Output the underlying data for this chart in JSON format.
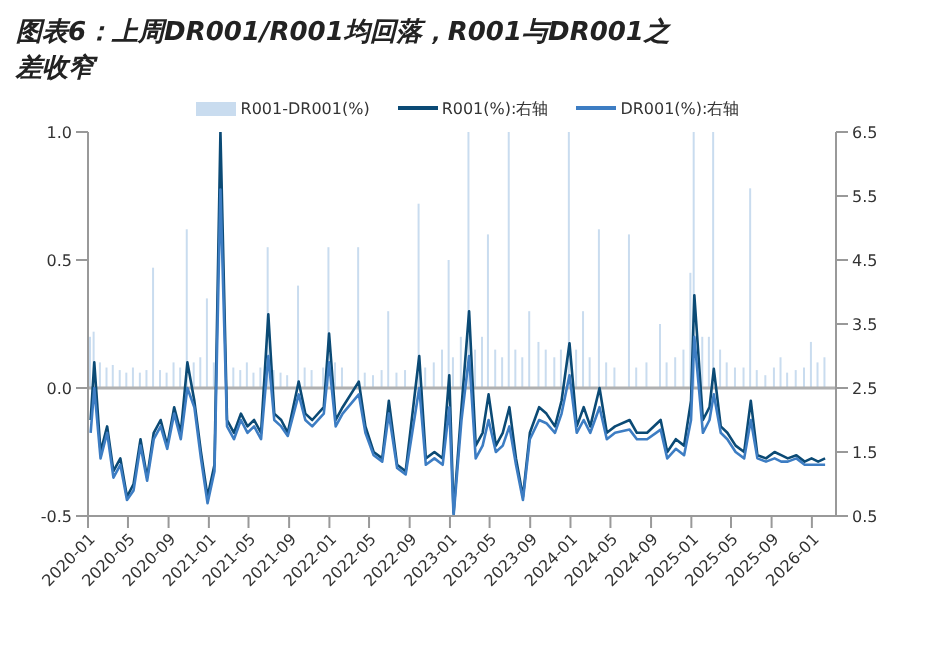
{
  "chart_data": {
    "type": "line",
    "title": "图表6：上周DR001/R001均回落，R001与DR001之差收窄",
    "x": [
      "2020-01-09",
      "2020-01-20",
      "2020-02-08",
      "2020-02-28",
      "2020-03-18",
      "2020-04-08",
      "2020-04-28",
      "2020-05-18",
      "2020-06-08",
      "2020-06-28",
      "2020-07-18",
      "2020-08-08",
      "2020-08-28",
      "2020-09-18",
      "2020-10-08",
      "2020-10-28",
      "2020-11-18",
      "2020-12-08",
      "2020-12-28",
      "2021-01-18",
      "2021-02-05",
      "2021-02-25",
      "2021-03-18",
      "2021-04-08",
      "2021-04-28",
      "2021-05-18",
      "2021-06-08",
      "2021-06-30",
      "2021-07-18",
      "2021-08-08",
      "2021-08-28",
      "2021-09-30",
      "2021-10-20",
      "2021-11-10",
      "2021-12-15",
      "2021-12-31",
      "2022-01-20",
      "2022-02-10",
      "2022-03-31",
      "2022-04-20",
      "2022-05-15",
      "2022-06-10",
      "2022-06-30",
      "2022-07-25",
      "2022-08-20",
      "2022-09-30",
      "2022-10-20",
      "2022-11-15",
      "2022-12-10",
      "2022-12-30",
      "2023-01-12",
      "2023-02-05",
      "2023-02-28",
      "2023-03-20",
      "2023-04-10",
      "2023-04-28",
      "2023-05-20",
      "2023-06-10",
      "2023-06-30",
      "2023-07-20",
      "2023-08-10",
      "2023-08-31",
      "2023-09-28",
      "2023-10-20",
      "2023-11-15",
      "2023-12-05",
      "2023-12-29",
      "2024-01-20",
      "2024-02-10",
      "2024-03-01",
      "2024-03-29",
      "2024-04-20",
      "2024-05-15",
      "2024-06-28",
      "2024-07-20",
      "2024-08-20",
      "2024-09-30",
      "2024-10-20",
      "2024-11-15",
      "2024-12-10",
      "2024-12-31",
      "2025-01-10",
      "2025-02-05",
      "2025-02-25",
      "2025-03-10",
      "2025-03-31",
      "2025-04-20",
      "2025-05-15",
      "2025-06-10",
      "2025-06-30",
      "2025-07-20",
      "2025-08-15",
      "2025-09-10",
      "2025-09-30",
      "2025-10-20",
      "2025-11-15",
      "2025-12-10",
      "2025-12-31",
      "2026-01-20",
      "2026-02-10"
    ],
    "series": [
      {
        "name": "R001-DR001(%)",
        "type": "bar",
        "color": "#c9dcef",
        "values": [
          0.2,
          0.22,
          0.1,
          0.08,
          0.09,
          0.07,
          0.06,
          0.08,
          0.06,
          0.07,
          0.47,
          0.07,
          0.06,
          0.1,
          0.08,
          0.62,
          0.1,
          0.12,
          0.35,
          0.1,
          null,
          null,
          0.08,
          0.07,
          0.1,
          0.06,
          0.08,
          0.55,
          0.07,
          0.06,
          0.05,
          0.4,
          0.08,
          0.07,
          0.08,
          0.55,
          0.1,
          0.08,
          0.55,
          0.06,
          0.05,
          0.07,
          0.3,
          0.06,
          0.07,
          0.72,
          0.08,
          0.1,
          0.15,
          0.5,
          0.12,
          0.2,
          1.0,
          0.15,
          0.2,
          0.6,
          0.15,
          0.12,
          1.0,
          0.15,
          0.12,
          0.3,
          0.18,
          0.15,
          0.12,
          0.15,
          1.0,
          0.15,
          0.3,
          0.12,
          0.62,
          0.1,
          0.08,
          0.6,
          0.08,
          0.1,
          0.25,
          0.1,
          0.12,
          0.15,
          0.45,
          1.0,
          0.2,
          0.2,
          1.0,
          0.15,
          0.1,
          0.08,
          0.08,
          0.78,
          0.07,
          0.05,
          0.08,
          0.12,
          0.06,
          0.07,
          0.08,
          0.18,
          0.1,
          0.12
        ]
      },
      {
        "name": "R001(%):右轴",
        "axis": "y2",
        "color": "#0b4a75",
        "values": [
          2.0,
          2.9,
          1.5,
          1.9,
          1.2,
          1.4,
          0.8,
          1.0,
          1.7,
          1.1,
          1.8,
          2.0,
          1.6,
          2.2,
          1.8,
          2.9,
          2.3,
          1.5,
          0.8,
          1.3,
          6.5,
          2.0,
          1.8,
          2.1,
          1.9,
          2.0,
          1.8,
          3.65,
          2.1,
          2.0,
          1.8,
          2.6,
          2.1,
          2.0,
          2.2,
          3.35,
          2.0,
          2.2,
          2.6,
          1.9,
          1.5,
          1.4,
          2.3,
          1.3,
          1.2,
          3.0,
          1.4,
          1.5,
          1.4,
          2.7,
          0.55,
          2.2,
          3.7,
          1.6,
          1.8,
          2.4,
          1.6,
          1.8,
          2.2,
          1.4,
          0.8,
          1.8,
          2.2,
          2.1,
          1.9,
          2.3,
          3.2,
          1.9,
          2.2,
          1.9,
          2.5,
          1.8,
          1.9,
          2.0,
          1.8,
          1.8,
          2.0,
          1.5,
          1.7,
          1.6,
          2.3,
          3.95,
          2.0,
          2.2,
          2.8,
          1.9,
          1.8,
          1.6,
          1.5,
          2.3,
          1.45,
          1.4,
          1.5,
          1.45,
          1.4,
          1.45,
          1.35,
          1.4,
          1.35,
          1.4
        ]
      },
      {
        "name": "DR001(%):右轴",
        "axis": "y2",
        "color": "#3d7dc3",
        "values": [
          1.8,
          2.5,
          1.4,
          1.8,
          1.1,
          1.3,
          0.75,
          0.9,
          1.6,
          1.05,
          1.7,
          1.9,
          1.55,
          2.1,
          1.7,
          2.5,
          2.2,
          1.4,
          0.7,
          1.2,
          5.6,
          1.9,
          1.7,
          2.0,
          1.8,
          1.9,
          1.7,
          3.0,
          2.0,
          1.9,
          1.75,
          2.4,
          2.0,
          1.9,
          2.1,
          2.9,
          1.9,
          2.1,
          2.4,
          1.8,
          1.45,
          1.35,
          2.1,
          1.25,
          1.15,
          2.5,
          1.3,
          1.4,
          1.3,
          2.2,
          0.5,
          2.0,
          3.0,
          1.4,
          1.6,
          2.0,
          1.5,
          1.6,
          1.9,
          1.3,
          0.75,
          1.7,
          2.0,
          1.95,
          1.8,
          2.1,
          2.7,
          1.8,
          2.0,
          1.8,
          2.2,
          1.7,
          1.8,
          1.85,
          1.7,
          1.7,
          1.85,
          1.4,
          1.55,
          1.45,
          2.0,
          3.3,
          1.8,
          2.0,
          2.4,
          1.8,
          1.7,
          1.5,
          1.4,
          2.0,
          1.4,
          1.35,
          1.4,
          1.35,
          1.35,
          1.4,
          1.3,
          1.3,
          1.3,
          1.3
        ]
      }
    ],
    "xlim": [
      "2020-01-01",
      "2026-03-15"
    ],
    "xticks": [
      "2020-01",
      "2020-05",
      "2020-09",
      "2021-01",
      "2021-05",
      "2021-09",
      "2022-01",
      "2022-05",
      "2022-09",
      "2023-01",
      "2023-05",
      "2023-09",
      "2024-01",
      "2024-05",
      "2024-09",
      "2025-01",
      "2025-05",
      "2025-09",
      "2026-01"
    ],
    "ylim": [
      -0.5,
      1
    ],
    "yticks": [
      -0.5,
      {
        "value": 0,
        "label": "0.0"
      },
      0.5,
      {
        "value": 1,
        "label": "1.0"
      }
    ],
    "y2lim": [
      0.5,
      6.5
    ],
    "y2ticks": [
      0.5,
      1.5,
      2.5,
      3.5,
      4.5,
      5.5,
      6.5
    ],
    "ref_lines": [
      {
        "axis": "y",
        "value": 0,
        "color": "#b0b0b0"
      }
    ],
    "legend": "top",
    "marker": "none",
    "line_style": "solid"
  }
}
